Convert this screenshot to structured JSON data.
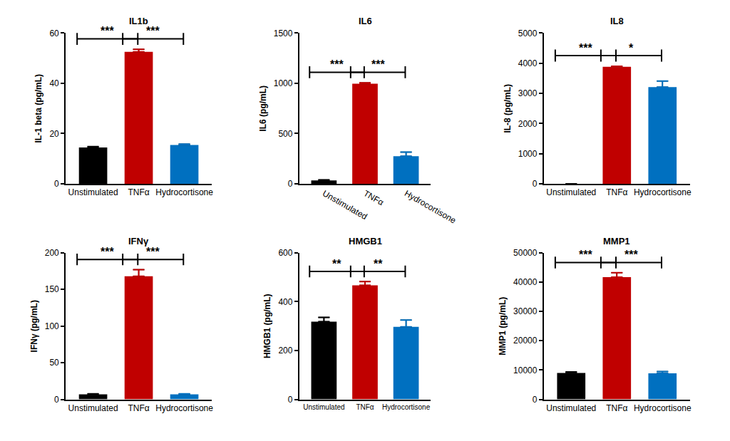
{
  "chart_data": [
    {
      "type": "bar",
      "title": "IL1b",
      "y_label": "IL-1 beta (pg/mL)",
      "categories": [
        "Unstimulated",
        "TNFα",
        "Hydrocortisone"
      ],
      "values": [
        14.5,
        52.5,
        15.5
      ],
      "errors": [
        0.3,
        1.0,
        0.3
      ],
      "colors": [
        "#000000",
        "#c00000",
        "#0070c0"
      ],
      "ylim": [
        0,
        60
      ],
      "yticks": [
        0,
        20,
        40,
        60
      ],
      "grid": false,
      "annotations": [
        {
          "between": [
            0,
            1
          ],
          "label": "***"
        },
        {
          "between": [
            1,
            2
          ],
          "label": "***"
        }
      ]
    },
    {
      "type": "bar",
      "title": "IL6",
      "y_label": "IL6 (pg/mL)",
      "categories": [
        "Unstimulated",
        "TNFα",
        "Hydrocortisone"
      ],
      "values": [
        35,
        995,
        275
      ],
      "errors": [
        5,
        10,
        40
      ],
      "colors": [
        "#000000",
        "#c00000",
        "#0070c0"
      ],
      "ylim": [
        0,
        1500
      ],
      "yticks": [
        0,
        500,
        1000,
        1500
      ],
      "grid": false,
      "annotations": [
        {
          "between": [
            0,
            1
          ],
          "label": "***"
        },
        {
          "between": [
            1,
            2
          ],
          "label": "***"
        }
      ]
    },
    {
      "type": "bar",
      "title": "IL8",
      "y_label": "IL-8 (pg/mL)",
      "categories": [
        "Unstimulated",
        "TNFα",
        "Hydrocortisone"
      ],
      "values": [
        0,
        3880,
        3210
      ],
      "errors": [
        0,
        20,
        200
      ],
      "colors": [
        "#000000",
        "#c00000",
        "#0070c0"
      ],
      "ylim": [
        0,
        5000
      ],
      "yticks": [
        0,
        1000,
        2000,
        3000,
        4000,
        5000
      ],
      "grid": false,
      "annotations": [
        {
          "between": [
            0,
            1
          ],
          "label": "***"
        },
        {
          "between": [
            1,
            2
          ],
          "label": "*"
        }
      ]
    },
    {
      "type": "bar",
      "title": "IFNγ",
      "y_label": "IFNγ (pg/mL)",
      "categories": [
        "Unstimulated",
        "TNFα",
        "Hydrocortisone"
      ],
      "values": [
        7,
        168,
        7
      ],
      "errors": [
        0.5,
        9,
        0.5
      ],
      "colors": [
        "#000000",
        "#c00000",
        "#0070c0"
      ],
      "ylim": [
        0,
        200
      ],
      "yticks": [
        0,
        50,
        100,
        150,
        200
      ],
      "grid": false,
      "annotations": [
        {
          "between": [
            0,
            1
          ],
          "label": "***"
        },
        {
          "between": [
            1,
            2
          ],
          "label": "***"
        }
      ]
    },
    {
      "type": "bar",
      "title": "HMGB1",
      "y_label": "HMGB1 (pg/mL)",
      "categories": [
        "Unstimulated",
        "TNFα",
        "Hydrocortisone"
      ],
      "values": [
        318,
        467,
        297
      ],
      "errors": [
        18,
        15,
        28
      ],
      "colors": [
        "#000000",
        "#c00000",
        "#0070c0"
      ],
      "ylim": [
        0,
        600
      ],
      "yticks": [
        0,
        200,
        400,
        600
      ],
      "grid": false,
      "annotations": [
        {
          "between": [
            0,
            1
          ],
          "label": "**"
        },
        {
          "between": [
            1,
            2
          ],
          "label": "**"
        }
      ]
    },
    {
      "type": "bar",
      "title": "MMP1",
      "y_label": "MMP1 (pg/mL)",
      "categories": [
        "Unstimulated",
        "TNFα",
        "Hydrocortisone"
      ],
      "values": [
        9000,
        41700,
        8900
      ],
      "errors": [
        400,
        1500,
        600
      ],
      "colors": [
        "#000000",
        "#c00000",
        "#0070c0"
      ],
      "ylim": [
        0,
        50000
      ],
      "yticks": [
        0,
        10000,
        20000,
        30000,
        40000,
        50000
      ],
      "grid": false,
      "annotations": [
        {
          "between": [
            0,
            1
          ],
          "label": "***"
        },
        {
          "between": [
            1,
            2
          ],
          "label": "***"
        }
      ]
    }
  ]
}
